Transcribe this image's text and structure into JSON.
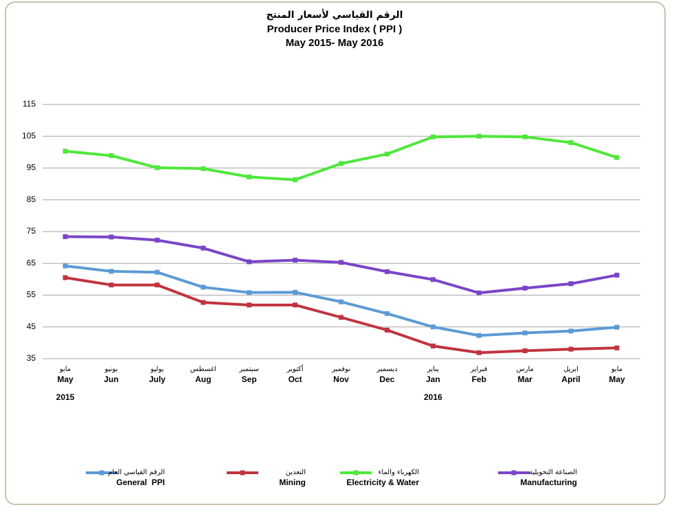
{
  "chart_data": {
    "type": "line",
    "title_ar": "الرقم القياسي لأسعار المنتج",
    "title": "Producer Price Index ( PPI )",
    "subtitle": "May 2015-  May 2016",
    "categories": [
      "May",
      "Jun",
      "July",
      "Aug",
      "Sep",
      "Oct",
      "Nov",
      "Dec",
      "Jan",
      "Feb",
      "Mar",
      "April",
      "May"
    ],
    "categories_ar": [
      "مايو",
      "يونيو",
      "يوليو",
      "اغسطس",
      "سبتمبر",
      "أكتوبر",
      "نوفمبر",
      "ديسمبر",
      "يناير",
      "فبراير",
      "مارس",
      "ابريل",
      "مايو"
    ],
    "years": [
      "2015",
      null,
      null,
      null,
      null,
      null,
      null,
      null,
      "2016",
      null,
      null,
      null,
      null
    ],
    "series": [
      {
        "name": "General  PPI",
        "name_ar": "الرقم القياسي العام",
        "color": "#5b9bd5",
        "values": [
          64.2,
          62.5,
          62.2,
          57.5,
          55.8,
          55.9,
          52.9,
          49.2,
          45,
          42.3,
          43.1,
          43.7,
          44.9
        ]
      },
      {
        "name": "Mining",
        "name_ar": "التعدين",
        "color": "#c0343f",
        "values": [
          60.5,
          58.2,
          58.2,
          52.7,
          51.9,
          51.9,
          48,
          44,
          39,
          36.9,
          37.5,
          38,
          38.4
        ]
      },
      {
        "name": "Electricity & Water",
        "name_ar": "الكهرباء والماء",
        "color": "#4ee83a",
        "values": [
          100.3,
          98.9,
          95.1,
          94.8,
          92.2,
          91.3,
          96.4,
          99.4,
          104.8,
          105,
          104.8,
          103,
          98.3
        ]
      },
      {
        "name": "Manufacturing",
        "name_ar": "الصناعة التحويلية",
        "color": "#7a45c8",
        "values": [
          73.4,
          73.3,
          72.3,
          69.8,
          65.5,
          66,
          65.3,
          62.4,
          59.9,
          55.7,
          57.2,
          58.6,
          61.3
        ]
      }
    ],
    "ylim": [
      35,
      115
    ],
    "yticks": [
      35,
      45,
      55,
      65,
      75,
      85,
      95,
      105,
      115
    ],
    "grid": true,
    "legend": "bottom"
  }
}
